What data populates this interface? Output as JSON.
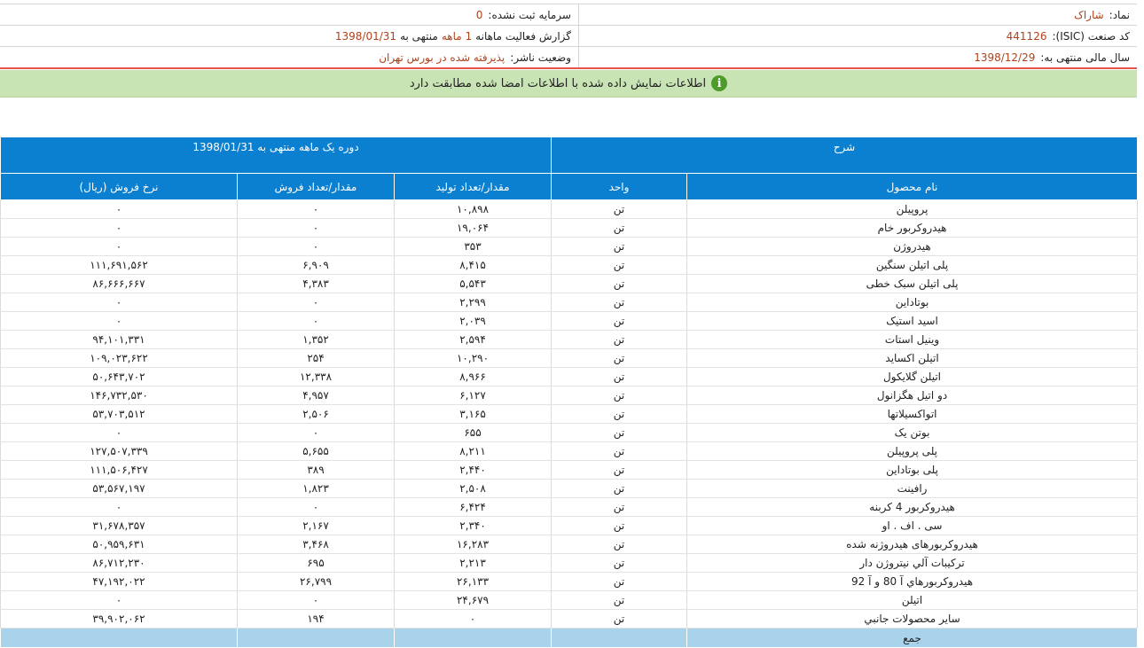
{
  "header": {
    "symbol_label": "نماد:",
    "symbol_value": "شاراک",
    "capital_label": "سرمایه ثبت نشده:",
    "capital_value": "0",
    "isic_label": "کد صنعت (ISIC):",
    "isic_value": "441126",
    "report_label": "گزارش فعالیت ماهانه",
    "report_value": "1 ماهه",
    "report_mid": "منتهی به",
    "report_date": "1398/01/31",
    "fiscal_label": "سال مالی منتهی به:",
    "fiscal_value": "1398/12/29",
    "publisher_label": "وضعیت ناشر:",
    "publisher_value": "پذیرفته شده در بورس تهران"
  },
  "notice": {
    "text": "اطلاعات نمایش داده شده با اطلاعات امضا شده مطابقت دارد",
    "icon": "info-icon"
  },
  "table": {
    "header_desc": "شرح",
    "header_period": "دوره یک ماهه منتهی به 1398/01/31",
    "columns": [
      "نام محصول",
      "واحد",
      "مقدار/تعداد تولید",
      "مقدار/تعداد فروش",
      "نرخ فروش (ریال)"
    ],
    "rows": [
      [
        "پروپیلن",
        "تن",
        "۱۰,۸۹۸",
        "۰",
        "۰"
      ],
      [
        "هیدروکربور خام",
        "تن",
        "۱۹,۰۶۴",
        "۰",
        "۰"
      ],
      [
        "هیدروژن",
        "تن",
        "۳۵۳",
        "۰",
        "۰"
      ],
      [
        "پلی اتیلن سنگین",
        "تن",
        "۸,۴۱۵",
        "۶,۹۰۹",
        "۱۱۱,۶۹۱,۵۶۲"
      ],
      [
        "پلی اتیلن سبک خطی",
        "تن",
        "۵,۵۴۳",
        "۴,۳۸۳",
        "۸۶,۶۶۶,۶۶۷"
      ],
      [
        "بوتاداین",
        "تن",
        "۲,۲۹۹",
        "۰",
        "۰"
      ],
      [
        "اسید استیک",
        "تن",
        "۲,۰۳۹",
        "۰",
        "۰"
      ],
      [
        "وینیل استات",
        "تن",
        "۲,۵۹۴",
        "۱,۳۵۲",
        "۹۴,۱۰۱,۳۳۱"
      ],
      [
        "اتیلن اکساید",
        "تن",
        "۱۰,۲۹۰",
        "۲۵۴",
        "۱۰۹,۰۲۳,۶۲۲"
      ],
      [
        "اتیلن گلایکول",
        "تن",
        "۸,۹۶۶",
        "۱۲,۳۳۸",
        "۵۰,۶۴۳,۷۰۲"
      ],
      [
        "دو اتیل هگزانول",
        "تن",
        "۶,۱۲۷",
        "۴,۹۵۷",
        "۱۴۶,۷۳۲,۵۳۰"
      ],
      [
        "اتواکسیلاتها",
        "تن",
        "۳,۱۶۵",
        "۲,۵۰۶",
        "۵۳,۷۰۳,۵۱۲"
      ],
      [
        "بوتن یک",
        "تن",
        "۶۵۵",
        "۰",
        "۰"
      ],
      [
        "پلی پروپیلن",
        "تن",
        "۸,۲۱۱",
        "۵,۶۵۵",
        "۱۲۷,۵۰۷,۳۳۹"
      ],
      [
        "پلی بوتاداین",
        "تن",
        "۲,۴۴۰",
        "۳۸۹",
        "۱۱۱,۵۰۶,۴۲۷"
      ],
      [
        "رافینت",
        "تن",
        "۲,۵۰۸",
        "۱,۸۲۳",
        "۵۳,۵۶۷,۱۹۷"
      ],
      [
        "هیدروکربور 4 کربنه",
        "تن",
        "۶,۴۲۴",
        "۰",
        "۰"
      ],
      [
        "سی . اف . او",
        "تن",
        "۲,۳۴۰",
        "۲,۱۶۷",
        "۳۱,۶۷۸,۳۵۷"
      ],
      [
        "هیدروکربورهای هیدروژنه شده",
        "تن",
        "۱۶,۲۸۳",
        "۳,۴۶۸",
        "۵۰,۹۵۹,۶۳۱"
      ],
      [
        "ترکیبات آلي نیتروژن دار",
        "تن",
        "۲,۲۱۳",
        "۶۹۵",
        "۸۶,۷۱۲,۲۳۰"
      ],
      [
        "هیدروکربورهاي آ 80 و آ 92",
        "تن",
        "۲۶,۱۳۳",
        "۲۶,۷۹۹",
        "۴۷,۱۹۲,۰۲۲"
      ],
      [
        "اتیلن",
        "تن",
        "۲۴,۶۷۹",
        "۰",
        "۰"
      ],
      [
        "سایر محصولات جانبي",
        "تن",
        "۰",
        "۱۹۴",
        "۳۹,۹۰۲,۰۶۲"
      ]
    ],
    "total_label": "جمع"
  }
}
